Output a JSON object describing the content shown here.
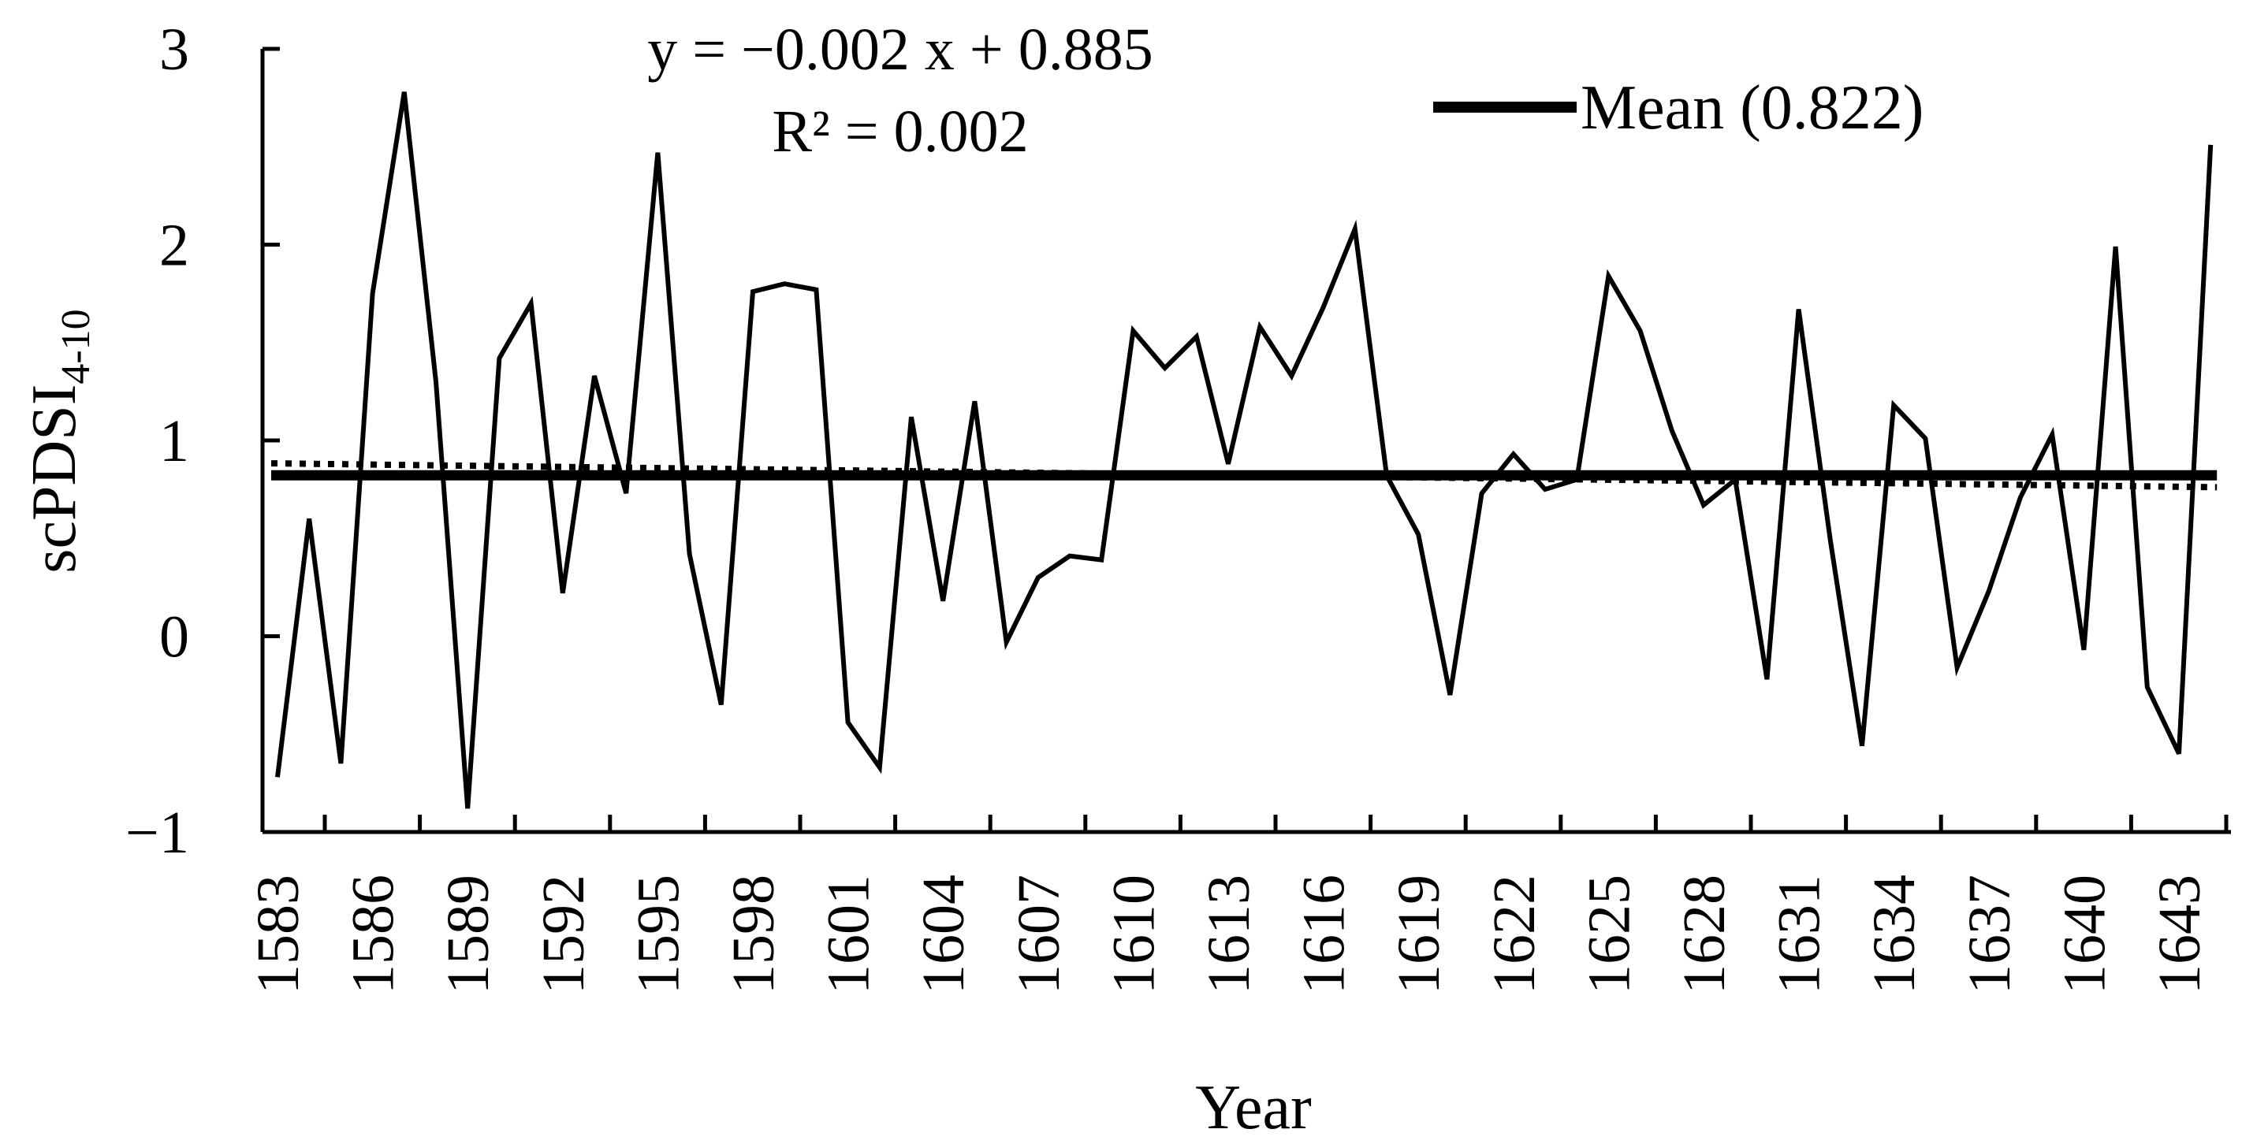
{
  "chart_data": {
    "type": "line",
    "xlabel": "Year",
    "ylabel": "scPDSI",
    "ylabel_subscript": "4-10",
    "ylim": [
      -1,
      3
    ],
    "yticks": [
      -1,
      0,
      1,
      2,
      3
    ],
    "ytick_labels": [
      "−1",
      "0",
      "1",
      "2",
      "3"
    ],
    "xlim": [
      1583,
      1644
    ],
    "xtick_labels": [
      "1583",
      "1586",
      "1589",
      "1592",
      "1595",
      "1598",
      "1601",
      "1604",
      "1607",
      "1610",
      "1613",
      "1616",
      "1619",
      "1622",
      "1625",
      "1628",
      "1631",
      "1634",
      "1637",
      "1640",
      "1643"
    ],
    "x": [
      1583,
      1584,
      1585,
      1586,
      1587,
      1588,
      1589,
      1590,
      1591,
      1592,
      1593,
      1594,
      1595,
      1596,
      1597,
      1598,
      1599,
      1600,
      1601,
      1602,
      1603,
      1604,
      1605,
      1606,
      1607,
      1608,
      1609,
      1610,
      1611,
      1612,
      1613,
      1614,
      1615,
      1616,
      1617,
      1618,
      1619,
      1620,
      1621,
      1622,
      1623,
      1624,
      1625,
      1626,
      1627,
      1628,
      1629,
      1630,
      1631,
      1632,
      1633,
      1634,
      1635,
      1636,
      1637,
      1638,
      1639,
      1640,
      1641,
      1642,
      1643,
      1644
    ],
    "series": [
      {
        "values": [
          -0.72,
          0.6,
          -0.65,
          1.75,
          2.78,
          1.3,
          -0.88,
          1.42,
          1.7,
          0.22,
          1.33,
          0.73,
          2.47,
          0.42,
          -0.35,
          1.76,
          1.8,
          1.77,
          -0.44,
          -0.67,
          1.12,
          0.18,
          1.2,
          -0.03,
          0.3,
          0.41,
          0.39,
          1.56,
          1.37,
          1.53,
          0.88,
          1.58,
          1.33,
          1.68,
          2.08,
          0.82,
          0.52,
          -0.3,
          0.73,
          0.93,
          0.75,
          0.8,
          1.84,
          1.56,
          1.05,
          0.67,
          0.8,
          -0.22,
          1.67,
          0.49,
          -0.56,
          1.18,
          1.01,
          -0.16,
          0.23,
          0.71,
          1.03,
          -0.07,
          1.99,
          -0.26,
          -0.6,
          2.51
        ]
      }
    ],
    "mean": {
      "label": "Mean (0.822)",
      "value": 0.822
    },
    "trend": {
      "slope": -0.002,
      "intercept": 0.885
    },
    "annotations": {
      "equation": "y = −0.002 x + 0.885",
      "r_squared": "R² = 0.002"
    },
    "legend_position": "top-right",
    "grid": false
  }
}
